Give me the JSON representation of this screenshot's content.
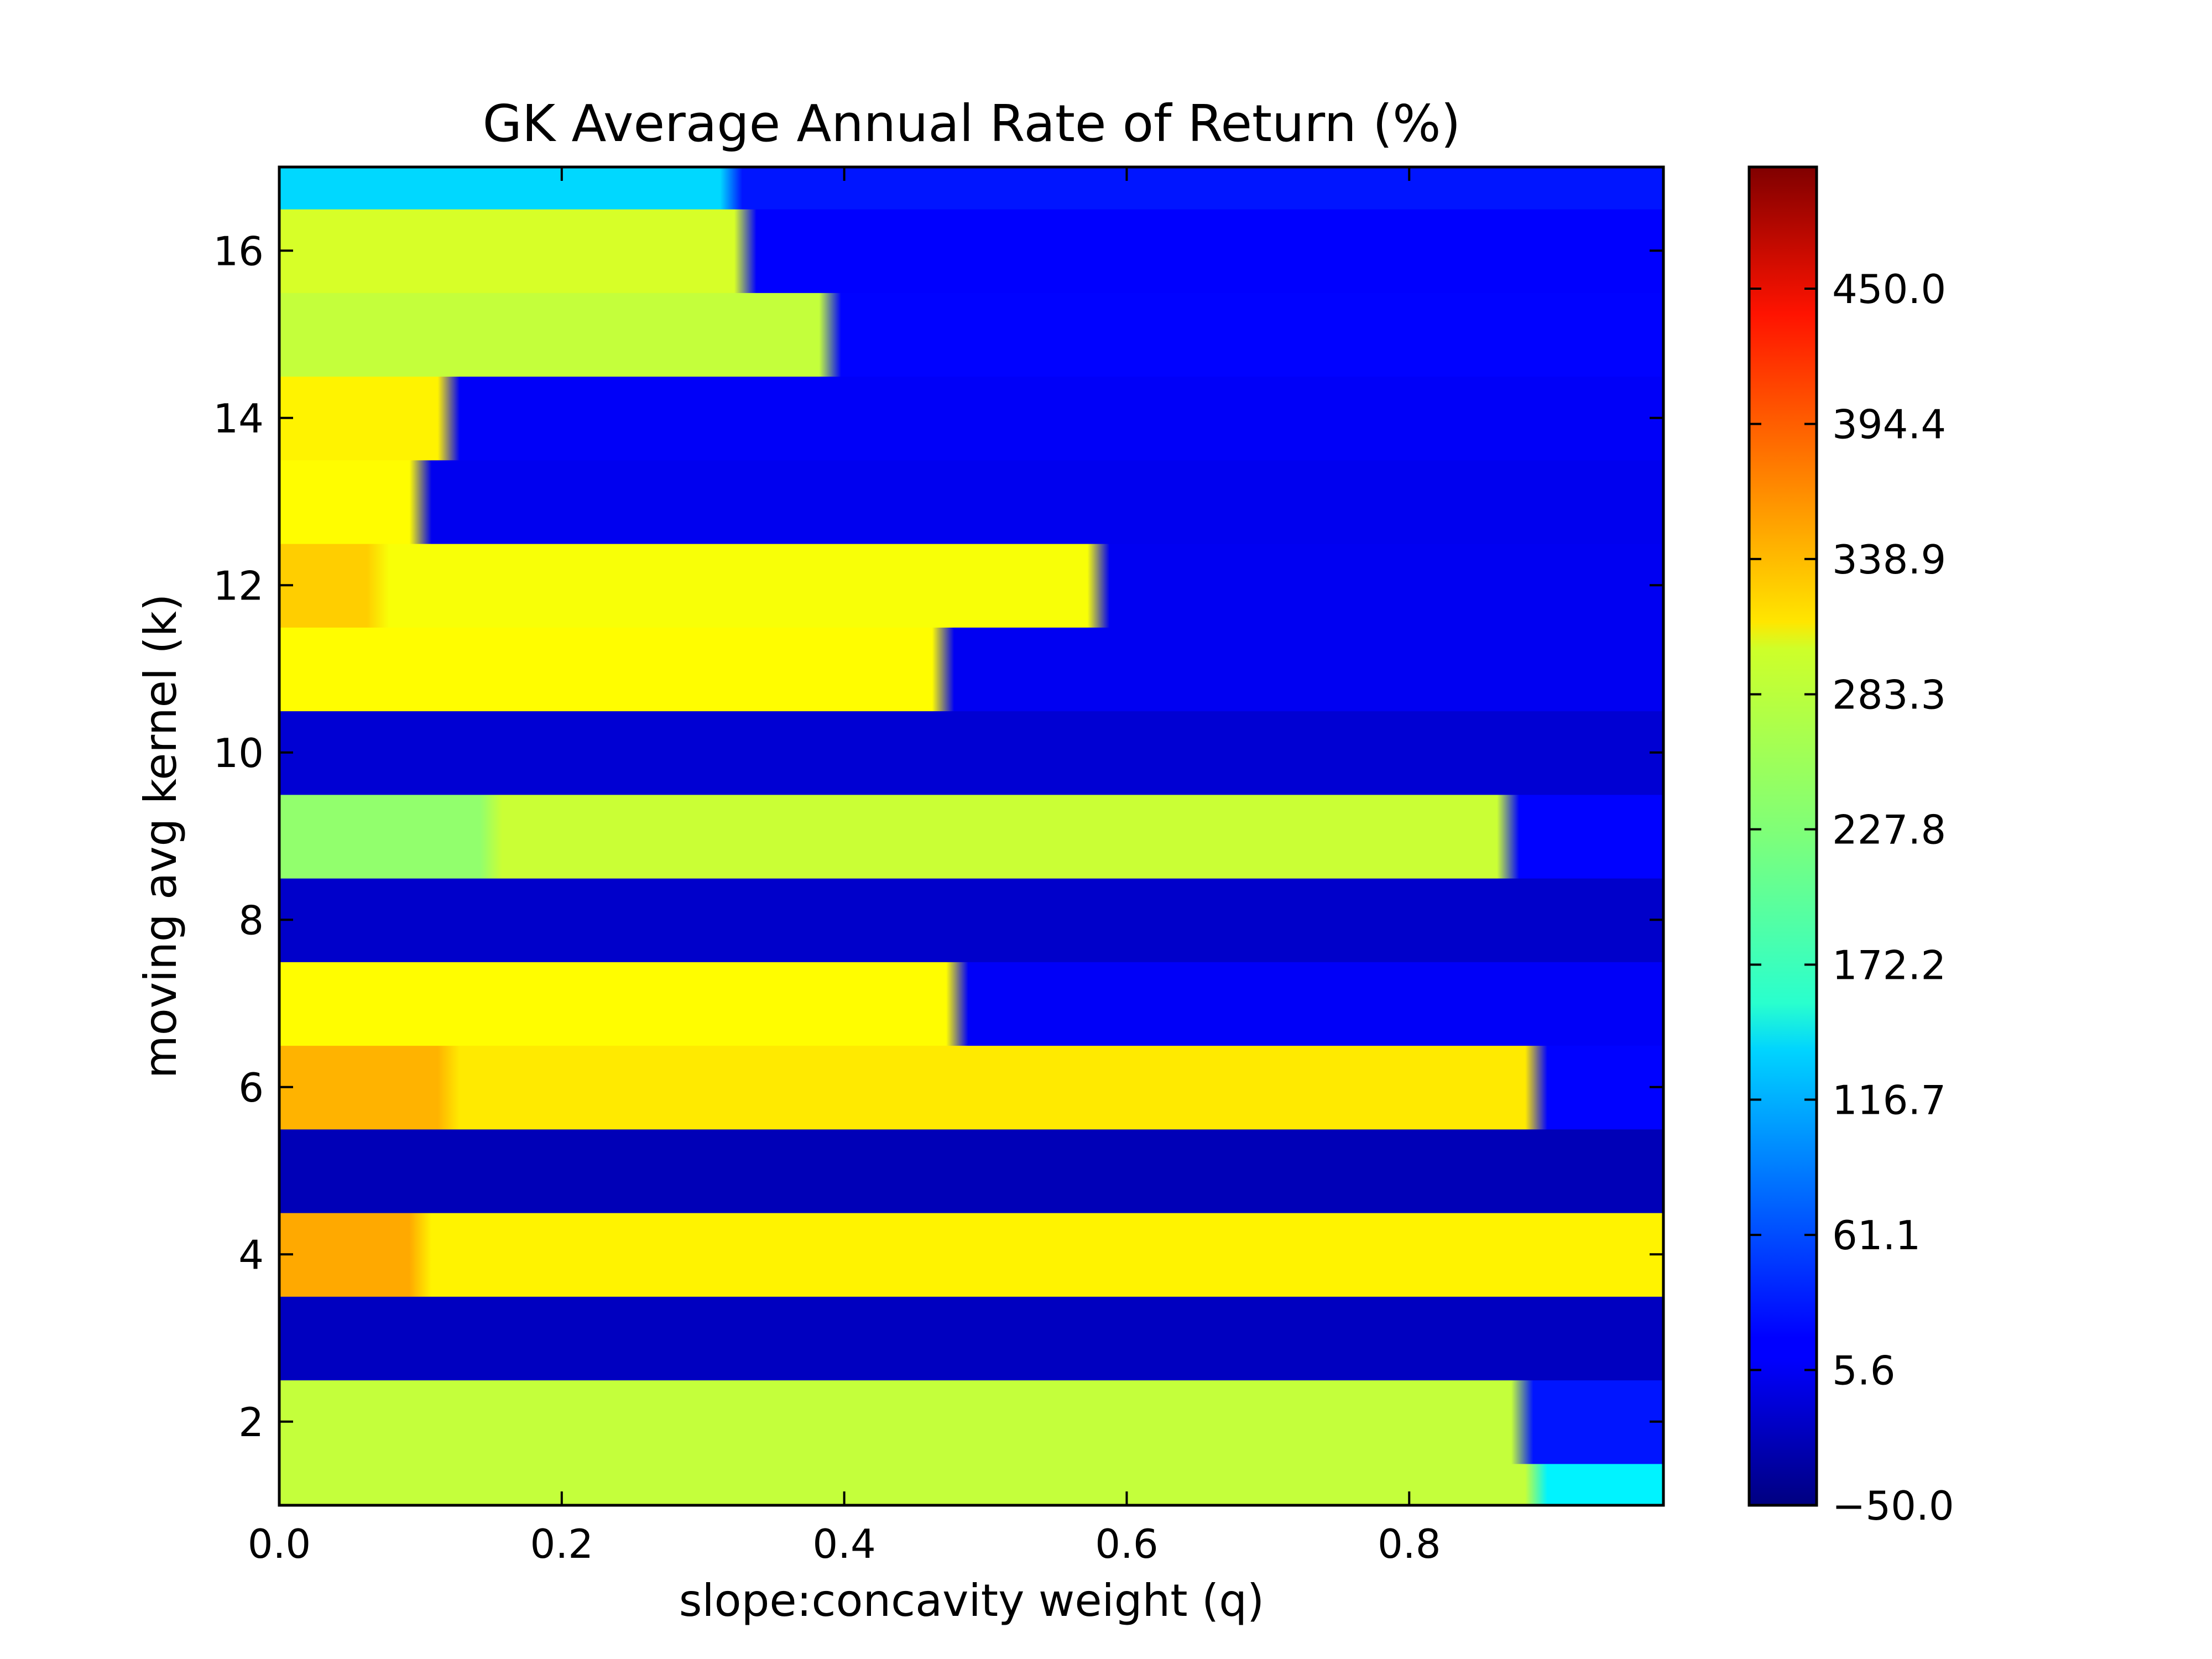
{
  "chart_data": {
    "type": "heatmap",
    "title": "GK Average Annual Rate of Return (%)",
    "xlabel": "slope:concavity weight (q)",
    "ylabel": "moving avg kernel (k)",
    "xlim": [
      0.0,
      0.98
    ],
    "ylim": [
      1,
      17
    ],
    "x_ticks": [
      "0.0",
      "0.2",
      "0.4",
      "0.6",
      "0.8"
    ],
    "y_ticks": [
      "2",
      "4",
      "6",
      "8",
      "10",
      "12",
      "14",
      "16"
    ],
    "colormap": "jet",
    "color_range": [
      -50.0,
      500.0
    ],
    "colorbar_ticks": [
      "−50.0",
      "5.6",
      "61.1",
      "116.7",
      "172.2",
      "227.8",
      "283.3",
      "338.9",
      "394.4",
      "450.0"
    ],
    "k_values": [
      1,
      2,
      3,
      4,
      5,
      6,
      7,
      8,
      9,
      10,
      11,
      12,
      13,
      14,
      15,
      16,
      17
    ],
    "rows": [
      {
        "k": 1,
        "segments": [
          {
            "q_end": 0.89,
            "value": 262
          },
          {
            "q_end": 0.98,
            "value": 150
          }
        ]
      },
      {
        "k": 2,
        "segments": [
          {
            "q_end": 0.88,
            "value": 262
          },
          {
            "q_end": 0.98,
            "value": 30
          }
        ]
      },
      {
        "k": 3,
        "segments": [
          {
            "q_end": 0.98,
            "value": -15
          }
        ]
      },
      {
        "k": 4,
        "segments": [
          {
            "q_end": 0.1,
            "value": 340
          },
          {
            "q_end": 0.98,
            "value": 300
          }
        ]
      },
      {
        "k": 5,
        "segments": [
          {
            "q_end": 0.98,
            "value": -20
          }
        ]
      },
      {
        "k": 6,
        "segments": [
          {
            "q_end": 0.12,
            "value": 335
          },
          {
            "q_end": 0.89,
            "value": 305
          },
          {
            "q_end": 0.98,
            "value": 20
          }
        ]
      },
      {
        "k": 7,
        "segments": [
          {
            "q_end": 0.48,
            "value": 295
          },
          {
            "q_end": 0.98,
            "value": 15
          }
        ]
      },
      {
        "k": 8,
        "segments": [
          {
            "q_end": 0.98,
            "value": -10
          }
        ]
      },
      {
        "k": 9,
        "segments": [
          {
            "q_end": 0.15,
            "value": 235
          },
          {
            "q_end": 0.87,
            "value": 265
          },
          {
            "q_end": 0.98,
            "value": 20
          }
        ]
      },
      {
        "k": 10,
        "segments": [
          {
            "q_end": 0.98,
            "value": -5
          }
        ]
      },
      {
        "k": 11,
        "segments": [
          {
            "q_end": 0.47,
            "value": 295
          },
          {
            "q_end": 0.98,
            "value": 12
          }
        ]
      },
      {
        "k": 12,
        "segments": [
          {
            "q_end": 0.07,
            "value": 320
          },
          {
            "q_end": 0.58,
            "value": 290
          },
          {
            "q_end": 0.98,
            "value": 12
          }
        ]
      },
      {
        "k": 13,
        "segments": [
          {
            "q_end": 0.1,
            "value": 295
          },
          {
            "q_end": 0.98,
            "value": 10
          }
        ]
      },
      {
        "k": 14,
        "segments": [
          {
            "q_end": 0.12,
            "value": 300
          },
          {
            "q_end": 0.98,
            "value": 15
          }
        ]
      },
      {
        "k": 15,
        "segments": [
          {
            "q_end": 0.39,
            "value": 262
          },
          {
            "q_end": 0.98,
            "value": 20
          }
        ]
      },
      {
        "k": 16,
        "segments": [
          {
            "q_end": 0.33,
            "value": 272
          },
          {
            "q_end": 0.98,
            "value": 18
          }
        ]
      },
      {
        "k": 17,
        "segments": [
          {
            "q_end": 0.32,
            "value": 135
          },
          {
            "q_end": 0.98,
            "value": 30
          }
        ]
      }
    ]
  }
}
